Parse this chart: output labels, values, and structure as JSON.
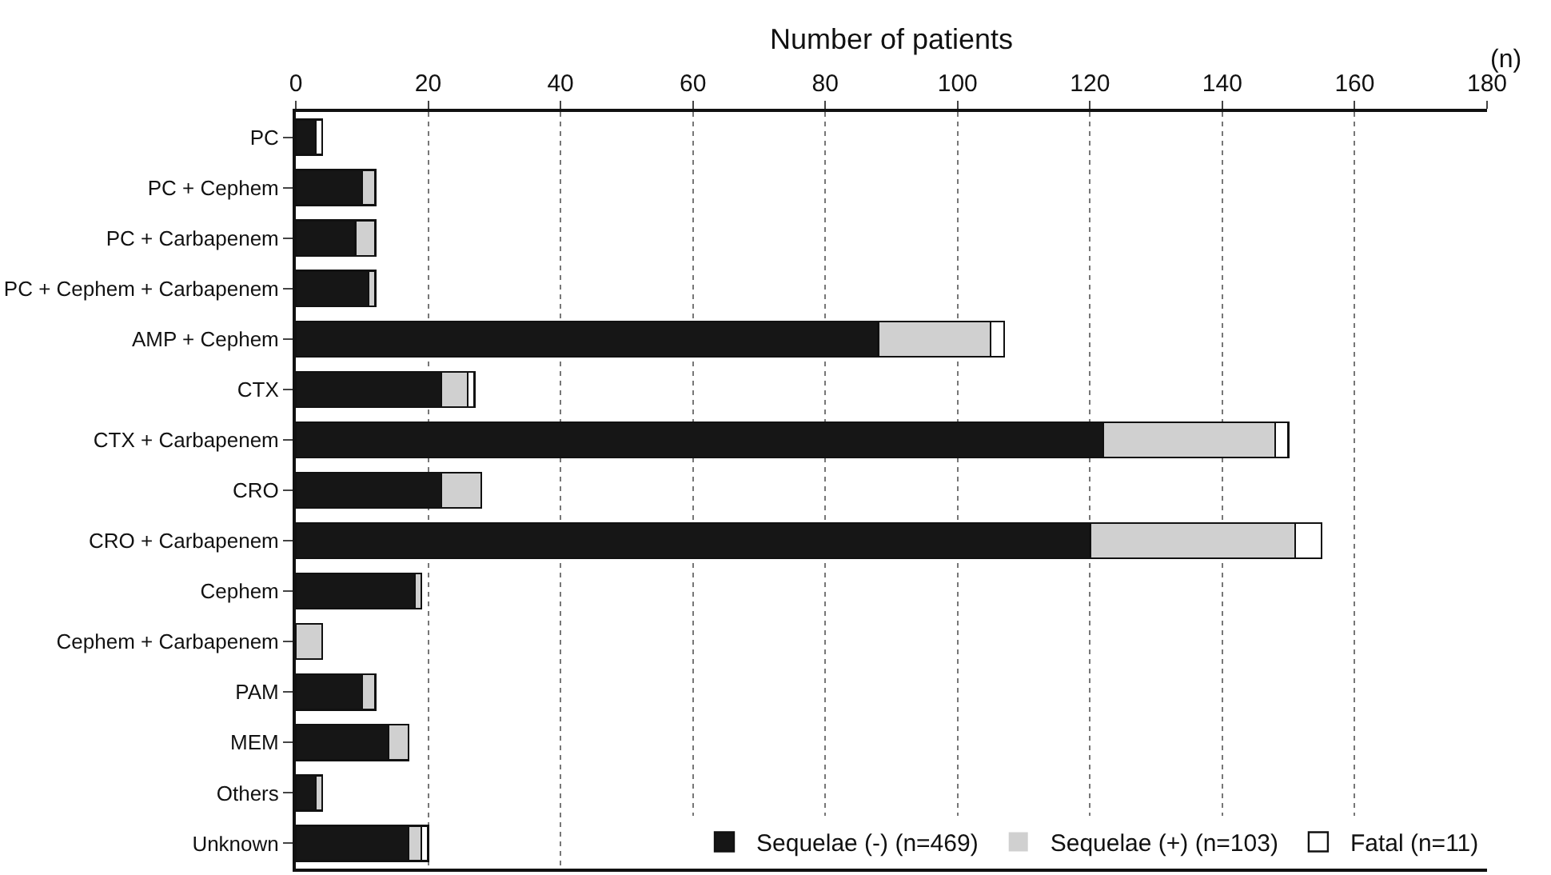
{
  "chart_data": {
    "type": "bar",
    "orientation": "horizontal",
    "stacked": true,
    "xlabel": "Number of patients",
    "annotations": [
      "(n)"
    ],
    "categories": [
      "PC",
      "PC + Cephem",
      "PC + Carbapenem",
      "PC + Cephem + Carbapenem",
      "AMP + Cephem",
      "CTX",
      "CTX + Carbapenem",
      "CRO",
      "CRO + Carbapenem",
      "Cephem",
      "Cephem + Carbapenem",
      "PAM",
      "MEM",
      "Others",
      "Unknown"
    ],
    "series": [
      {
        "name": "Sequelae (-) (n=469)",
        "color": "#161616",
        "values": [
          3,
          10,
          9,
          11,
          88,
          22,
          122,
          22,
          120,
          18,
          0,
          10,
          14,
          3,
          17
        ]
      },
      {
        "name": "Sequelae (+) (n=103)",
        "color": "#d0d0d0",
        "values": [
          0,
          2,
          3,
          1,
          17,
          4,
          26,
          6,
          31,
          1,
          4,
          2,
          3,
          1,
          2
        ]
      },
      {
        "name": "Fatal (n=11)",
        "color": "#ffffff",
        "values": [
          1,
          0,
          0,
          0,
          2,
          1,
          2,
          0,
          4,
          0,
          0,
          0,
          0,
          0,
          1
        ]
      }
    ],
    "xlim": [
      0,
      180
    ],
    "xticks": [
      0,
      20,
      40,
      60,
      80,
      100,
      120,
      140,
      160,
      180
    ],
    "grid": "x",
    "legend": "bottom right"
  }
}
